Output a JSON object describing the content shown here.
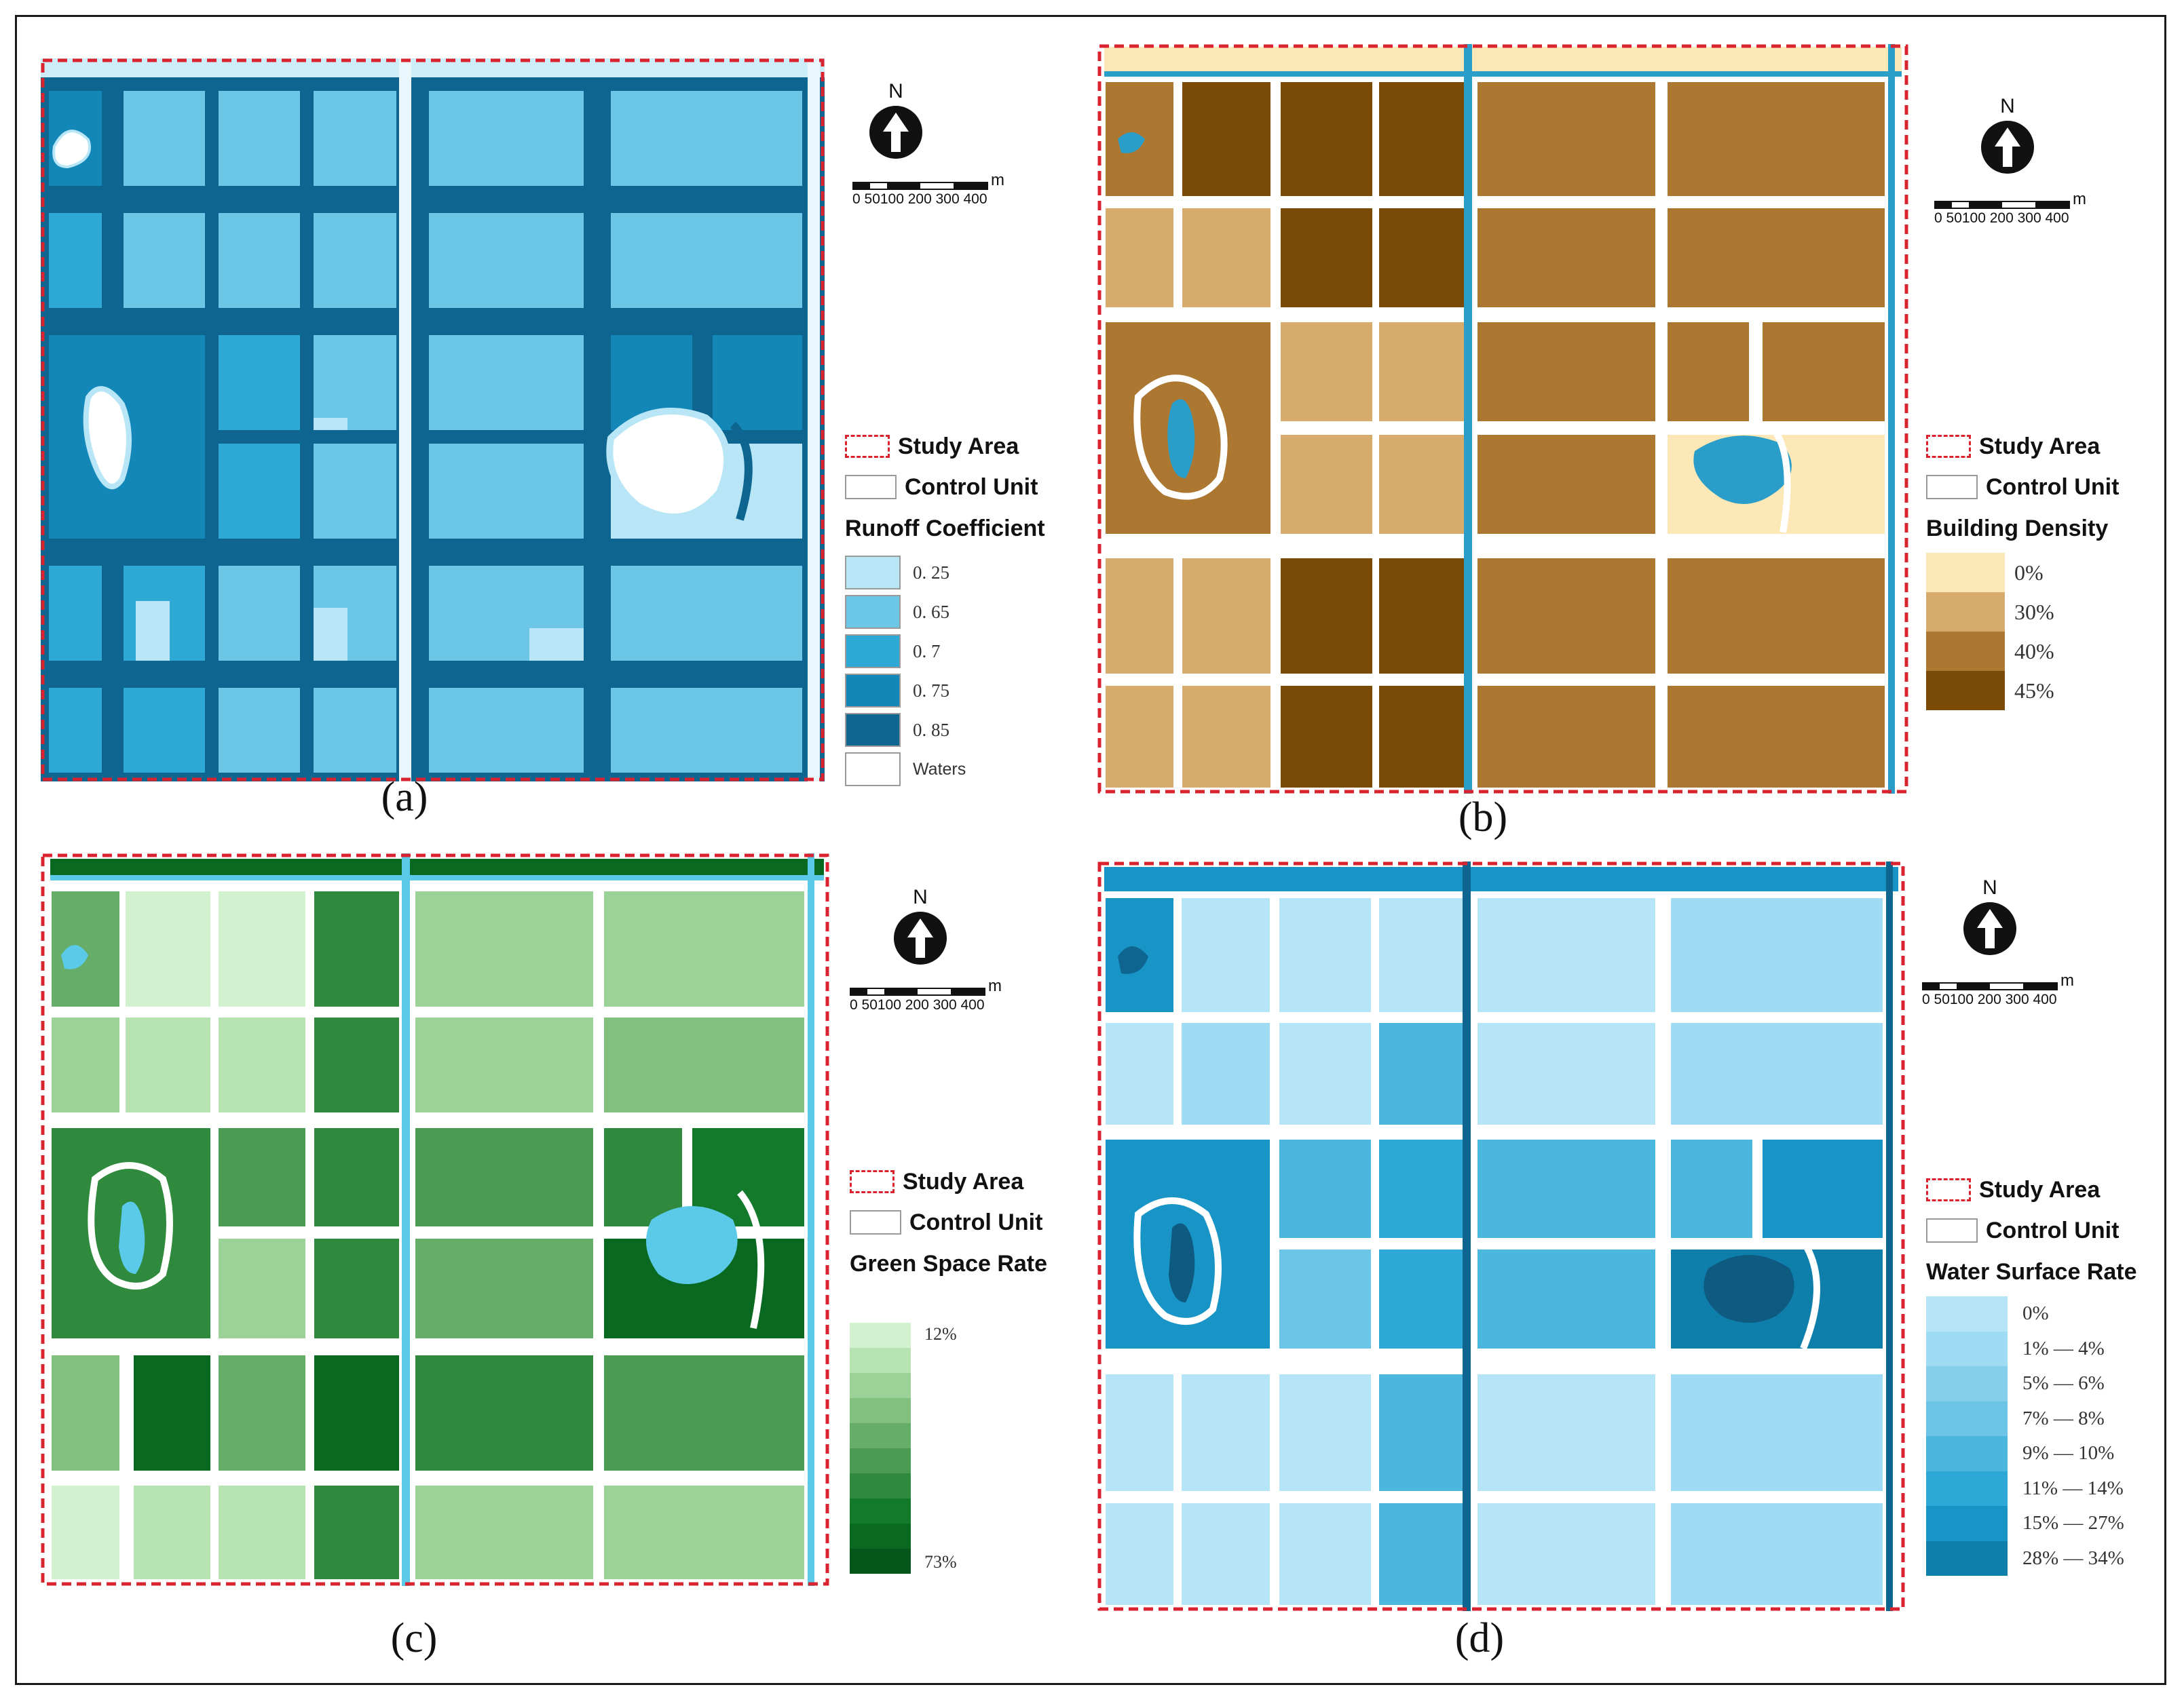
{
  "panels": {
    "a": {
      "caption": "(a)",
      "legend": {
        "study_area": "Study Area",
        "control_unit": "Control Unit",
        "title": "Runoff Coefficient",
        "classes": [
          {
            "label": "0. 25",
            "color": "#b8e6f7"
          },
          {
            "label": "0. 65",
            "color": "#6cc6e6"
          },
          {
            "label": "0. 7",
            "color": "#2ea9d6"
          },
          {
            "label": "0. 75",
            "color": "#1388b8"
          },
          {
            "label": "0. 85",
            "color": "#0e6690"
          },
          {
            "label": "Waters",
            "color": "#ffffff"
          }
        ]
      }
    },
    "b": {
      "caption": "(b)",
      "legend": {
        "study_area": "Study Area",
        "control_unit": "Control Unit",
        "title": "Building Density",
        "classes": [
          {
            "label": "0%",
            "color": "#fbe8b6"
          },
          {
            "label": "30%",
            "color": "#d7ab6b"
          },
          {
            "label": "40%",
            "color": "#ab7731"
          },
          {
            "label": "45%",
            "color": "#7a4a07"
          }
        ]
      }
    },
    "c": {
      "caption": "(c)",
      "legend": {
        "study_area": "Study Area",
        "control_unit": "Control Unit",
        "title": "Green Space Rate",
        "min_label": "12%",
        "max_label": "73%",
        "ramp": [
          "#d2f2cf",
          "#b7e3b2",
          "#9cd198",
          "#81c07f",
          "#66ad69",
          "#4a9a52",
          "#2f8a3d",
          "#137a2c",
          "#0a6920",
          "#04561a"
        ]
      }
    },
    "d": {
      "caption": "(d)",
      "legend": {
        "study_area": "Study Area",
        "control_unit": "Control Unit",
        "title": "Water Surface Rate",
        "classes": [
          {
            "label": "0%",
            "color": "#b5e5f7"
          },
          {
            "label": "1% — 4%",
            "color": "#9fdbf2"
          },
          {
            "label": "5% — 6%",
            "color": "#86cfec"
          },
          {
            "label": "7% — 8%",
            "color": "#6cc4e6"
          },
          {
            "label": "9% — 10%",
            "color": "#4cb7de"
          },
          {
            "label": "11% — 14%",
            "color": "#2ea8d6"
          },
          {
            "label": "15% — 27%",
            "color": "#1895c6"
          },
          {
            "label": "28% — 34%",
            "color": "#0e7eaa"
          }
        ]
      }
    }
  },
  "map_furniture": {
    "north_label": "N",
    "scale_unit": "m",
    "scale_ticks": "0 50100 200 300 400"
  },
  "colors": {
    "study_area_border": "#d9232e",
    "road": "#ffffff",
    "water": "#5bc9e8"
  }
}
